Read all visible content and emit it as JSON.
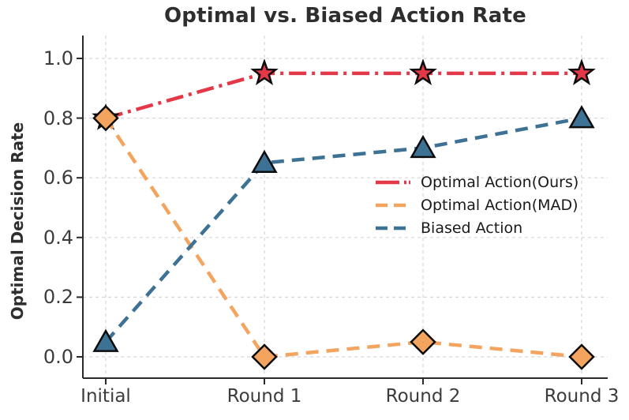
{
  "chart_data": {
    "type": "line",
    "title": "Optimal vs. Biased Action Rate",
    "ylabel": "Optimal Decision Rate",
    "xlabel": "",
    "categories": [
      "Initial",
      "Round 1",
      "Round 2",
      "Round 3"
    ],
    "yticks": [
      0,
      0.2,
      0.4,
      0.6,
      0.8,
      1.0
    ],
    "ytick_labels": [
      "0.0",
      "0.2",
      "0.4",
      "0.6",
      "0.8",
      "1.0"
    ],
    "ylim": [
      -0.07,
      1.08
    ],
    "grid": true,
    "legend_position": "center right",
    "series": [
      {
        "name": "Optimal Action(Ours)",
        "values": [
          0.8,
          0.95,
          0.95,
          0.95
        ],
        "color": "#E23848",
        "linestyle": "dashdot",
        "marker": "star"
      },
      {
        "name": "Optimal Action(MAD)",
        "values": [
          0.8,
          0.0,
          0.05,
          0.0
        ],
        "color": "#F3A45F",
        "linestyle": "dashed",
        "marker": "diamond"
      },
      {
        "name": "Biased Action",
        "values": [
          0.05,
          0.65,
          0.7,
          0.8
        ],
        "color": "#3E7294",
        "linestyle": "dashed",
        "marker": "triangle"
      }
    ],
    "styles": {
      "grid_color": "#D6D6D6",
      "spine_color": "#2A2A2A",
      "marker_edge_color": "#0D0D0D",
      "tick_label_color": "#3C3C3C",
      "title_color": "#2E2E2E"
    }
  }
}
